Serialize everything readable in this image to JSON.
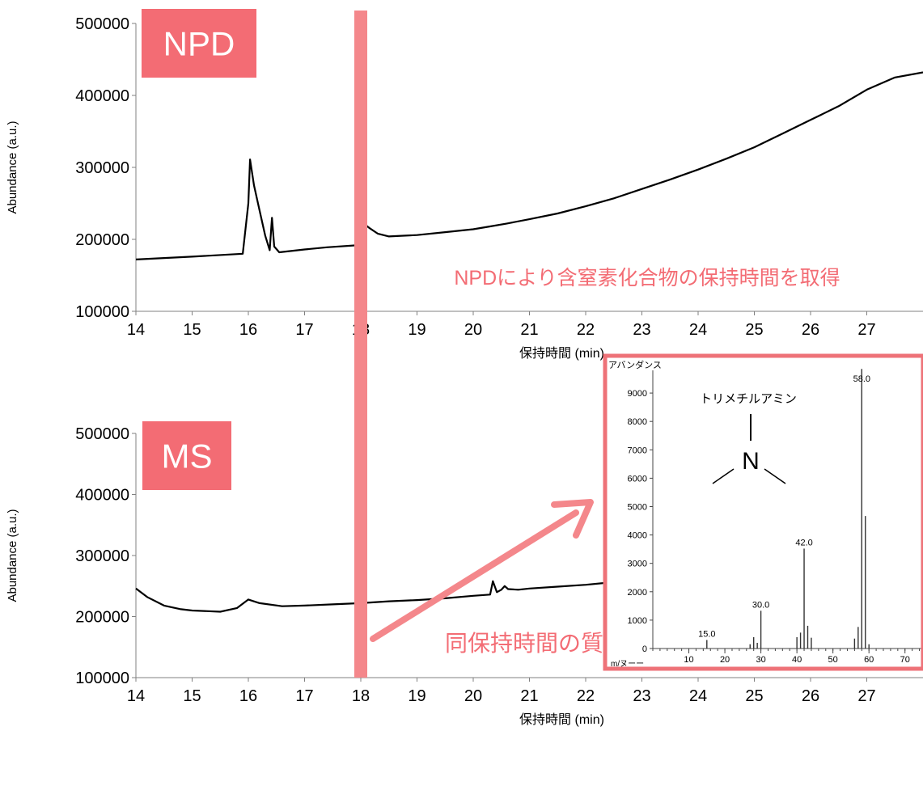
{
  "colors": {
    "accent": "#F36C74",
    "highlight_bar": "#F4878B",
    "trace": "#000000",
    "axis": "#808080",
    "spectrum_border": "#EE7278"
  },
  "chart_data": [
    {
      "id": "npd",
      "type": "line",
      "badge": "NPD",
      "title": "",
      "xlabel": "保持時間 (min)",
      "ylabel": "Abundance (a.u.)",
      "xlim": [
        14,
        28
      ],
      "ylim": [
        100000,
        500000
      ],
      "x_ticks": [
        14,
        15,
        16,
        17,
        18,
        19,
        20,
        21,
        22,
        23,
        24,
        25,
        26,
        27
      ],
      "x_tick_labels": [
        "14",
        "15",
        "16",
        "17",
        "18",
        "19",
        "20",
        "21",
        "22",
        "23",
        "24",
        "25",
        "26",
        "27"
      ],
      "y_ticks": [
        100000,
        200000,
        300000,
        400000,
        500000
      ],
      "y_tick_labels": [
        "100000",
        "200000",
        "300000",
        "400000",
        "500000"
      ],
      "annotation": "NPDにより含窒素化合物の保持時間を取得",
      "series": [
        {
          "x": [
            14.0,
            15.0,
            15.9,
            16.0,
            16.03,
            16.1,
            16.2,
            16.3,
            16.38,
            16.42,
            16.46,
            16.55,
            17.0,
            17.4,
            17.97,
            18.0,
            18.05,
            18.15,
            18.3,
            18.5,
            19.0,
            19.5,
            20.0,
            20.3,
            20.6,
            21.0,
            21.5,
            22.0,
            22.5,
            23.0,
            23.5,
            24.0,
            24.5,
            25.0,
            25.5,
            26.0,
            26.5,
            27.0,
            27.5,
            28.0
          ],
          "y": [
            172000,
            176000,
            180000,
            250000,
            311000,
            275000,
            240000,
            205000,
            185000,
            230000,
            190000,
            182000,
            186000,
            189000,
            192000,
            212000,
            222000,
            216000,
            208000,
            204000,
            206000,
            210000,
            214000,
            218000,
            222000,
            228000,
            236000,
            246000,
            257000,
            270000,
            283000,
            297000,
            312000,
            328000,
            347000,
            366000,
            385000,
            408000,
            425000,
            432000
          ]
        }
      ]
    },
    {
      "id": "ms",
      "type": "line",
      "badge": "MS",
      "title": "",
      "xlabel": "保持時間 (min)",
      "ylabel": "Abundance (a.u.)",
      "xlim": [
        14,
        28
      ],
      "ylim": [
        100000,
        500000
      ],
      "x_ticks": [
        14,
        15,
        16,
        17,
        18,
        19,
        20,
        21,
        22,
        23,
        24,
        25,
        26,
        27
      ],
      "x_tick_labels": [
        "14",
        "15",
        "16",
        "17",
        "18",
        "19",
        "20",
        "21",
        "22",
        "23",
        "24",
        "25",
        "26",
        "27"
      ],
      "y_ticks": [
        100000,
        200000,
        300000,
        400000,
        500000
      ],
      "y_tick_labels": [
        "100000",
        "200000",
        "300000",
        "400000",
        "500000"
      ],
      "annotation": "同保持時間の質量情報から成分を定性",
      "series": [
        {
          "x": [
            14.0,
            14.2,
            14.5,
            14.8,
            15.0,
            15.5,
            15.8,
            16.0,
            16.2,
            16.6,
            17.0,
            17.5,
            18.0,
            18.5,
            19.0,
            19.5,
            20.0,
            20.3,
            20.35,
            20.42,
            20.5,
            20.56,
            20.62,
            20.8,
            21.0,
            21.5,
            22.0,
            22.33
          ],
          "y": [
            246000,
            232000,
            218000,
            212000,
            210000,
            208000,
            214000,
            228000,
            222000,
            217000,
            218000,
            220000,
            222000,
            225000,
            227000,
            230000,
            234000,
            236000,
            258000,
            240000,
            244000,
            250000,
            245000,
            244000,
            246000,
            249000,
            252000,
            255000
          ]
        }
      ]
    },
    {
      "id": "spectrum",
      "type": "bar",
      "y_title": "アバンダンス",
      "x_title": "m/ヌーー",
      "compound": "トリメチルアミン",
      "atom": "N",
      "xlim": [
        0,
        75
      ],
      "ylim": [
        0,
        9800
      ],
      "x_ticks": [
        10,
        20,
        30,
        40,
        50,
        60,
        70
      ],
      "x_tick_labels": [
        "10",
        "20",
        "30",
        "40",
        "50",
        "60",
        "70"
      ],
      "y_ticks": [
        0,
        1000,
        2000,
        3000,
        4000,
        5000,
        6000,
        7000,
        8000,
        9000
      ],
      "y_tick_labels": [
        "0",
        "1000",
        "2000",
        "3000",
        "4000",
        "5000",
        "6000",
        "7000",
        "8000",
        "9000"
      ],
      "peaks_mz": [
        15,
        27,
        28,
        29,
        30,
        40,
        41,
        42,
        43,
        44,
        56,
        57,
        58,
        59,
        60
      ],
      "peaks_abundance": [
        300,
        150,
        400,
        200,
        1330,
        400,
        560,
        3520,
        800,
        380,
        350,
        760,
        9850,
        4670,
        150
      ],
      "peak_labels": [
        {
          "mz": 15,
          "text": "15.0"
        },
        {
          "mz": 30,
          "text": "30.0"
        },
        {
          "mz": 42,
          "text": "42.0"
        },
        {
          "mz": 58,
          "text": "58.0"
        }
      ]
    }
  ]
}
